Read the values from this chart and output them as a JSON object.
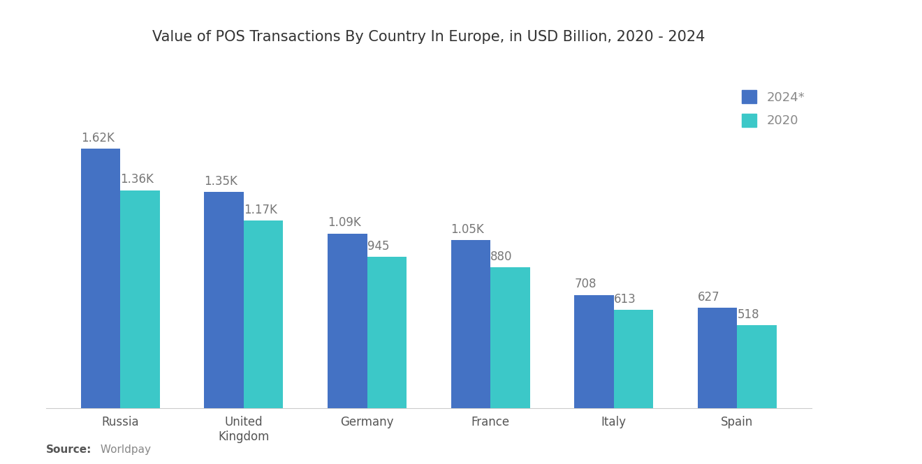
{
  "title": "Value of POS Transactions By Country In Europe, in USD Billion, 2020 - 2024",
  "categories": [
    "Russia",
    "United\nKingdom",
    "Germany",
    "France",
    "Italy",
    "Spain"
  ],
  "values_2024": [
    1620,
    1350,
    1090,
    1050,
    708,
    627
  ],
  "values_2020": [
    1360,
    1170,
    945,
    880,
    613,
    518
  ],
  "labels_2024": [
    "1.62K",
    "1.35K",
    "1.09K",
    "1.05K",
    "708",
    "627"
  ],
  "labels_2020": [
    "1.36K",
    "1.17K",
    "945",
    "880",
    "613",
    "518"
  ],
  "color_2024": "#4472C4",
  "color_2020": "#3CC8C8",
  "legend_2024": "2024*",
  "legend_2020": "2020",
  "source_bold": "Source:",
  "source_normal": " Worldpay",
  "background_color": "#FFFFFF",
  "title_fontsize": 15,
  "label_fontsize": 12,
  "tick_fontsize": 12,
  "legend_fontsize": 13,
  "source_fontsize": 11,
  "ylim": [
    0,
    2200
  ],
  "bar_width": 0.32
}
